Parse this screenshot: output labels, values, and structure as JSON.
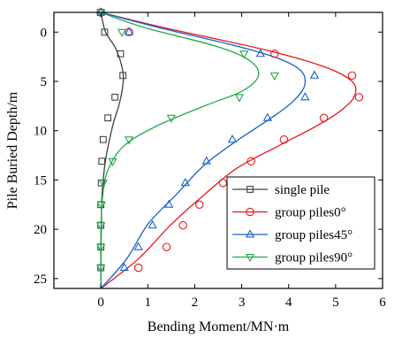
{
  "chart_data": {
    "type": "line",
    "xlabel": "Bending Moment/MN·m",
    "ylabel": "Pile Buried Depth/m",
    "xlim": [
      -1,
      6
    ],
    "ylim": [
      0,
      26
    ],
    "y_inverted": true,
    "y_axis_top_offset": -2,
    "xticks": [
      0,
      1,
      2,
      3,
      4,
      5,
      6
    ],
    "yticks": [
      0,
      5,
      10,
      15,
      20,
      25
    ],
    "legend_position": "bottom-right",
    "series": [
      {
        "name": "single pile",
        "color": "#404040",
        "marker": "square",
        "x": [
          0,
          0.1,
          0.3,
          0.42,
          0.48,
          0.45,
          0.38,
          0.28,
          0.18,
          0.1,
          0.05,
          0.02,
          0.01,
          0,
          0
        ],
        "y": [
          -2,
          0,
          1.5,
          3,
          4.5,
          6,
          7.5,
          9,
          11,
          13,
          15,
          17,
          20,
          23,
          26
        ],
        "markers_x": [
          0,
          0.08,
          0.42,
          0.47,
          0.3,
          0.15,
          0.05,
          0.02,
          0.01,
          0,
          0,
          0,
          0
        ],
        "markers_y": [
          -2,
          0,
          2.2,
          4.4,
          6.6,
          8.7,
          10.9,
          13.1,
          15.3,
          17.5,
          19.6,
          21.8,
          23.9
        ]
      },
      {
        "name": "group piles0°",
        "color": "#e8141a",
        "marker": "circle",
        "x": [
          0,
          1.3,
          3.5,
          4.75,
          5.35,
          5.4,
          5.1,
          4.6,
          3.8,
          2.9,
          2.2,
          1.5,
          0.8,
          0
        ],
        "y": [
          -2,
          -0.5,
          1.8,
          3.5,
          5,
          6.5,
          8,
          9.5,
          11.5,
          13.8,
          16.5,
          19.5,
          23,
          26
        ],
        "markers_x": [
          0,
          0.6,
          3.7,
          5.35,
          5.5,
          4.75,
          3.9,
          3.2,
          2.6,
          2.1,
          1.75,
          1.4,
          0.8
        ],
        "markers_y": [
          -2,
          0,
          2.2,
          4.4,
          6.6,
          8.7,
          10.9,
          13.1,
          15.3,
          17.5,
          19.6,
          21.8,
          23.9
        ]
      },
      {
        "name": "group piles45°",
        "color": "#1a5fcf",
        "marker": "triangle-up",
        "x": [
          0,
          1.2,
          3.2,
          4.15,
          4.35,
          4.1,
          3.6,
          2.9,
          2.2,
          1.6,
          1,
          0.55,
          0
        ],
        "y": [
          -2,
          -0.5,
          1.8,
          3.5,
          5.2,
          7,
          8.8,
          11,
          13.5,
          16.5,
          19.5,
          23,
          26
        ],
        "markers_x": [
          0,
          0.6,
          3.4,
          4.55,
          4.35,
          3.55,
          2.8,
          2.25,
          1.8,
          1.45,
          1.1,
          0.8,
          0.5
        ],
        "markers_y": [
          -2,
          0,
          2.2,
          4.4,
          6.6,
          8.7,
          10.9,
          13.1,
          15.3,
          17.5,
          19.6,
          21.8,
          23.9
        ]
      },
      {
        "name": "group piles90°",
        "color": "#22a84a",
        "marker": "triangle-down",
        "x": [
          0,
          0.9,
          2.5,
          3.2,
          3.35,
          3.0,
          2.2,
          1.2,
          0.5,
          0.15,
          0.03,
          0,
          0
        ],
        "y": [
          -2,
          -0.5,
          1.5,
          3,
          4.5,
          6,
          7.5,
          9.5,
          11.5,
          14,
          17,
          21,
          26
        ],
        "markers_x": [
          0,
          0.45,
          3.05,
          3.7,
          2.95,
          1.5,
          0.6,
          0.25,
          0.05,
          0.01,
          0,
          0,
          0
        ],
        "markers_y": [
          -2,
          0,
          2.2,
          4.4,
          6.6,
          8.7,
          10.9,
          13.1,
          15.3,
          17.5,
          19.6,
          21.8,
          23.9
        ]
      }
    ]
  }
}
